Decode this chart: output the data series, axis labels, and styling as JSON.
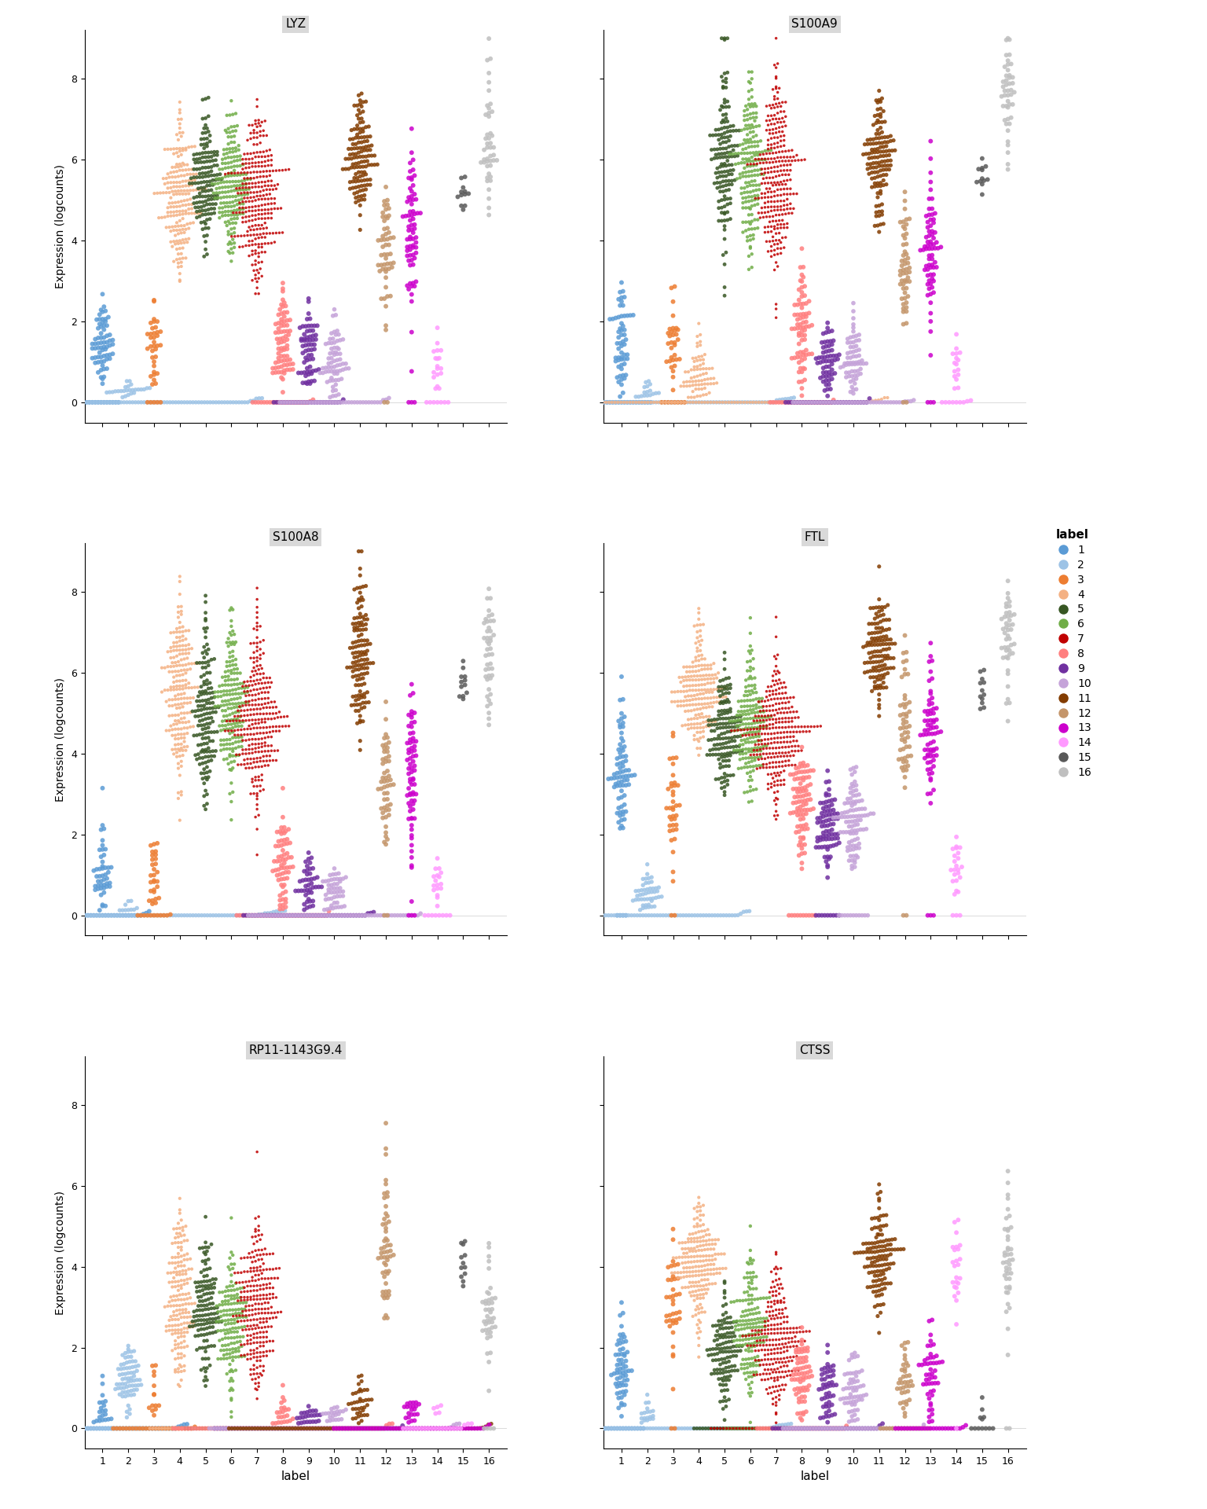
{
  "genes": [
    "LYZ",
    "S100A9",
    "S100A8",
    "FTL",
    "RP11-1143G9.4",
    "CTSS"
  ],
  "clusters": [
    1,
    2,
    3,
    4,
    5,
    6,
    7,
    8,
    9,
    10,
    11,
    12,
    13,
    14,
    15,
    16
  ],
  "colors": {
    "1": "#5B9BD5",
    "2": "#9DC3E6",
    "3": "#ED7D31",
    "4": "#F4B183",
    "5": "#375623",
    "6": "#70AD47",
    "7": "#C00000",
    "8": "#FF7F7F",
    "9": "#7030A0",
    "10": "#C5A3D9",
    "11": "#833C00",
    "12": "#C4956A",
    "13": "#CC00CC",
    "14": "#FF99FF",
    "15": "#595959",
    "16": "#BFBFBF"
  },
  "ylim": [
    -0.5,
    9.2
  ],
  "yticks": [
    0,
    2,
    4,
    6,
    8
  ],
  "ylabel": "Expression (logcounts)",
  "xlabel": "label",
  "legend_title": "label",
  "nrows": 3,
  "ncols": 2,
  "panel_title_bg": "#D9D9D9",
  "background_color": "#FFFFFF",
  "gene_cluster_data": {
    "LYZ": {
      "1": [
        1.5,
        0.5,
        80,
        0.15
      ],
      "2": [
        0.1,
        0.3,
        120,
        0.6
      ],
      "3": [
        1.5,
        0.5,
        40,
        0.1
      ],
      "4": [
        5.0,
        0.9,
        200,
        0.0
      ],
      "5": [
        5.5,
        0.8,
        150,
        0.0
      ],
      "6": [
        5.3,
        0.8,
        180,
        0.0
      ],
      "7": [
        5.0,
        1.0,
        280,
        0.0
      ],
      "8": [
        1.5,
        0.7,
        100,
        0.2
      ],
      "9": [
        1.2,
        0.6,
        90,
        0.25
      ],
      "10": [
        1.0,
        0.5,
        110,
        0.3
      ],
      "11": [
        6.0,
        0.7,
        130,
        0.0
      ],
      "12": [
        3.8,
        0.8,
        55,
        0.05
      ],
      "13": [
        4.0,
        0.9,
        75,
        0.05
      ],
      "14": [
        0.8,
        0.4,
        25,
        0.3
      ],
      "15": [
        5.2,
        0.3,
        12,
        0.0
      ],
      "16": [
        6.2,
        0.9,
        45,
        0.0
      ]
    },
    "S100A9": {
      "1": [
        1.5,
        0.8,
        80,
        0.25
      ],
      "2": [
        0.1,
        0.2,
        120,
        0.7
      ],
      "3": [
        1.5,
        0.7,
        40,
        0.2
      ],
      "4": [
        0.5,
        0.5,
        200,
        0.5
      ],
      "5": [
        6.0,
        1.2,
        150,
        0.0
      ],
      "6": [
        5.8,
        1.0,
        180,
        0.0
      ],
      "7": [
        5.5,
        1.1,
        280,
        0.0
      ],
      "8": [
        1.8,
        0.8,
        100,
        0.2
      ],
      "9": [
        1.0,
        0.5,
        90,
        0.3
      ],
      "10": [
        1.0,
        0.5,
        110,
        0.35
      ],
      "11": [
        6.0,
        0.8,
        130,
        0.0
      ],
      "12": [
        3.5,
        0.9,
        55,
        0.05
      ],
      "13": [
        3.8,
        0.9,
        75,
        0.05
      ],
      "14": [
        0.8,
        0.4,
        25,
        0.3
      ],
      "15": [
        5.5,
        0.3,
        12,
        0.0
      ],
      "16": [
        7.5,
        0.8,
        45,
        0.0
      ]
    },
    "S100A8": {
      "1": [
        1.0,
        0.7,
        80,
        0.3
      ],
      "2": [
        0.05,
        0.15,
        120,
        0.75
      ],
      "3": [
        1.0,
        0.6,
        40,
        0.25
      ],
      "4": [
        5.5,
        1.2,
        200,
        0.0
      ],
      "5": [
        5.0,
        1.0,
        150,
        0.0
      ],
      "6": [
        5.2,
        1.0,
        180,
        0.0
      ],
      "7": [
        4.8,
        1.1,
        280,
        0.0
      ],
      "8": [
        1.2,
        0.7,
        100,
        0.3
      ],
      "9": [
        0.6,
        0.5,
        90,
        0.4
      ],
      "10": [
        0.5,
        0.4,
        110,
        0.45
      ],
      "11": [
        6.5,
        0.9,
        130,
        0.0
      ],
      "12": [
        3.2,
        0.9,
        55,
        0.05
      ],
      "13": [
        3.5,
        1.0,
        75,
        0.05
      ],
      "14": [
        0.8,
        0.4,
        25,
        0.35
      ],
      "15": [
        5.8,
        0.3,
        12,
        0.0
      ],
      "16": [
        6.5,
        0.8,
        45,
        0.0
      ]
    },
    "FTL": {
      "1": [
        3.5,
        0.7,
        80,
        0.05
      ],
      "2": [
        0.4,
        0.4,
        120,
        0.5
      ],
      "3": [
        2.8,
        0.8,
        40,
        0.05
      ],
      "4": [
        5.5,
        0.7,
        200,
        0.0
      ],
      "5": [
        4.5,
        0.7,
        150,
        0.0
      ],
      "6": [
        4.8,
        0.8,
        180,
        0.0
      ],
      "7": [
        4.5,
        0.8,
        280,
        0.0
      ],
      "8": [
        2.8,
        0.7,
        100,
        0.1
      ],
      "9": [
        2.3,
        0.6,
        90,
        0.1
      ],
      "10": [
        2.3,
        0.6,
        110,
        0.1
      ],
      "11": [
        6.5,
        0.6,
        130,
        0.0
      ],
      "12": [
        4.5,
        0.8,
        55,
        0.05
      ],
      "13": [
        4.5,
        0.8,
        75,
        0.05
      ],
      "14": [
        1.2,
        0.4,
        25,
        0.15
      ],
      "15": [
        5.5,
        0.3,
        12,
        0.0
      ],
      "16": [
        7.0,
        0.7,
        45,
        0.0
      ]
    },
    "RP11-1143G9.4": {
      "1": [
        0.3,
        0.4,
        80,
        0.6
      ],
      "2": [
        1.2,
        0.4,
        120,
        0.4
      ],
      "3": [
        0.6,
        0.5,
        40,
        0.5
      ],
      "4": [
        3.2,
        1.1,
        200,
        0.1
      ],
      "5": [
        2.8,
        0.9,
        150,
        0.1
      ],
      "6": [
        2.5,
        0.8,
        180,
        0.15
      ],
      "7": [
        3.0,
        1.0,
        280,
        0.1
      ],
      "8": [
        0.3,
        0.3,
        100,
        0.65
      ],
      "9": [
        0.2,
        0.2,
        90,
        0.7
      ],
      "10": [
        0.2,
        0.2,
        110,
        0.7
      ],
      "11": [
        0.5,
        0.4,
        130,
        0.6
      ],
      "12": [
        4.5,
        1.1,
        55,
        0.0
      ],
      "13": [
        0.3,
        0.3,
        75,
        0.65
      ],
      "14": [
        0.3,
        0.3,
        25,
        0.65
      ],
      "15": [
        4.2,
        0.4,
        12,
        0.0
      ],
      "16": [
        2.8,
        0.7,
        45,
        0.1
      ]
    },
    "CTSS": {
      "1": [
        1.5,
        0.7,
        80,
        0.2
      ],
      "2": [
        0.15,
        0.3,
        120,
        0.65
      ],
      "3": [
        3.2,
        0.8,
        40,
        0.05
      ],
      "4": [
        4.2,
        0.7,
        200,
        0.0
      ],
      "5": [
        2.0,
        0.7,
        150,
        0.15
      ],
      "6": [
        2.5,
        0.8,
        180,
        0.1
      ],
      "7": [
        2.2,
        0.8,
        280,
        0.15
      ],
      "8": [
        1.2,
        0.6,
        100,
        0.3
      ],
      "9": [
        0.8,
        0.5,
        90,
        0.4
      ],
      "10": [
        0.8,
        0.5,
        110,
        0.4
      ],
      "11": [
        4.2,
        0.7,
        130,
        0.0
      ],
      "12": [
        1.2,
        0.6,
        55,
        0.3
      ],
      "13": [
        1.2,
        0.6,
        75,
        0.3
      ],
      "14": [
        3.8,
        0.6,
        25,
        0.05
      ],
      "15": [
        0.3,
        0.3,
        12,
        0.6
      ],
      "16": [
        4.2,
        0.8,
        45,
        0.05
      ]
    }
  }
}
